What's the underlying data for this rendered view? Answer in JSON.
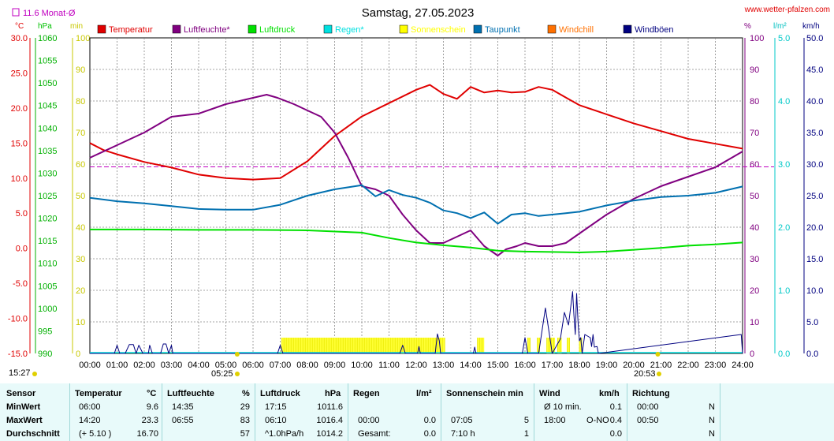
{
  "header": {
    "title": "Samstag, 27.05.2023",
    "site": "www.wetter-pfalzen.com",
    "monthly_avg": "11.6 Monat-Ø"
  },
  "axis_units": {
    "temp": "°C",
    "hpa": "hPa",
    "min": "min",
    "percent": "%",
    "rain": "l/m²",
    "kmh": "km/h"
  },
  "legend": [
    {
      "label": "Temperatur",
      "color": "#e00000"
    },
    {
      "label": "Luftfeuchte*",
      "color": "#800080"
    },
    {
      "label": "Luftdruck",
      "color": "#00e000"
    },
    {
      "label": "Regen*",
      "color": "#00e0e0"
    },
    {
      "label": "Sonnenschein",
      "color": "#ffff00"
    },
    {
      "label": "Taupunkt",
      "color": "#0070b0"
    },
    {
      "label": "Windchill",
      "color": "#ff7000"
    },
    {
      "label": "Windböen",
      "color": "#000080"
    }
  ],
  "sun": {
    "sunrise": "05:25",
    "sunset": "20:53",
    "update": "15:27"
  },
  "chart_data": {
    "type": "line",
    "x_ticks": [
      "00:00",
      "01:00",
      "02:00",
      "03:00",
      "04:00",
      "05:00",
      "06:00",
      "07:00",
      "08:00",
      "09:00",
      "10:00",
      "11:00",
      "12:00",
      "13:00",
      "14:00",
      "15:00",
      "16:00",
      "17:00",
      "18:00",
      "19:00",
      "20:00",
      "21:00",
      "22:00",
      "23:00",
      "24:00"
    ],
    "axes": {
      "temp_c": {
        "min": -15,
        "max": 30,
        "ticks": [
          "30.0",
          "25.0",
          "20.0",
          "15.0",
          "10.0",
          "5.0",
          "0.0",
          "-5.0",
          "-10.0",
          "-15.0"
        ]
      },
      "pressure_hpa": {
        "min": 990,
        "max": 1060,
        "ticks": [
          "1060",
          "1055",
          "1050",
          "1045",
          "1040",
          "1035",
          "1030",
          "1025",
          "1020",
          "1015",
          "1010",
          "1005",
          "1000",
          "995",
          "990"
        ]
      },
      "sunshine_min": {
        "min": 0,
        "max": 100,
        "ticks": [
          "100",
          "90",
          "80",
          "70",
          "60",
          "50",
          "40",
          "30",
          "20",
          "10",
          "0"
        ]
      },
      "humidity_pct": {
        "min": 0,
        "max": 100,
        "ticks": [
          "100",
          "90",
          "80",
          "70",
          "60",
          "50",
          "40",
          "30",
          "20",
          "10",
          "0"
        ]
      },
      "rain_lm2": {
        "min": 0,
        "max": 5,
        "ticks": [
          "5.0",
          "4.0",
          "3.0",
          "2.0",
          "1.0",
          "0.0"
        ]
      },
      "wind_kmh": {
        "min": 0,
        "max": 50,
        "ticks": [
          "50.0",
          "45.0",
          "40.0",
          "35.0",
          "30.0",
          "25.0",
          "20.0",
          "15.0",
          "10.0",
          "5.0",
          "0.0"
        ]
      }
    },
    "monthly_avg_temp": 11.6,
    "series": [
      {
        "name": "Temperatur",
        "color": "#e00000",
        "unit": "temp_c",
        "x": [
          0,
          0.5,
          1,
          2,
          3,
          4,
          5,
          6,
          7,
          8,
          9,
          10,
          11,
          12,
          12.5,
          13,
          13.5,
          14,
          14.5,
          15,
          15.5,
          16,
          16.5,
          17,
          17.5,
          18,
          19,
          20,
          21,
          22,
          23,
          24
        ],
        "y": [
          15.0,
          14.0,
          13.4,
          12.3,
          11.5,
          10.5,
          10.0,
          9.8,
          10.0,
          12.4,
          16.0,
          18.8,
          20.7,
          22.6,
          23.3,
          22.0,
          21.3,
          23.0,
          22.2,
          22.5,
          22.2,
          22.3,
          23.0,
          22.6,
          21.5,
          20.4,
          19.1,
          17.8,
          16.7,
          15.6,
          14.9,
          14.2
        ]
      },
      {
        "name": "Luftfeuchte*",
        "color": "#800080",
        "unit": "humidity_pct",
        "x": [
          0,
          1,
          2,
          3,
          4,
          5,
          6,
          6.5,
          6.9,
          7.5,
          8,
          8.5,
          9,
          9.5,
          10,
          10.5,
          11,
          11.5,
          12,
          12.5,
          13,
          13.5,
          14,
          14.5,
          15,
          15.3,
          15.7,
          16,
          16.5,
          17,
          17.5,
          18,
          19,
          20,
          21,
          22,
          23,
          24
        ],
        "y": [
          62,
          66,
          70,
          75,
          76,
          79,
          81,
          82,
          81,
          79,
          77,
          75,
          70,
          62,
          53,
          52,
          50,
          44,
          39,
          35,
          35,
          37,
          39,
          34,
          31,
          33,
          34,
          35,
          34,
          34,
          35,
          38,
          44,
          49,
          53,
          56,
          59,
          64
        ]
      },
      {
        "name": "Luftdruck",
        "color": "#00e000",
        "unit": "pressure_hpa",
        "x": [
          0,
          2,
          4,
          6,
          8,
          10,
          11,
          12,
          13,
          14,
          15,
          16,
          17,
          18,
          19,
          20,
          21,
          22,
          23,
          24
        ],
        "y": [
          1017.5,
          1017.5,
          1017.4,
          1017.4,
          1017.3,
          1016.8,
          1015.6,
          1014.6,
          1014.0,
          1013.5,
          1012.8,
          1012.6,
          1012.5,
          1012.4,
          1012.6,
          1013.0,
          1013.4,
          1013.9,
          1014.2,
          1014.6
        ]
      },
      {
        "name": "Taupunkt",
        "color": "#0070b0",
        "unit": "temp_c",
        "x": [
          0,
          1,
          2,
          3,
          4,
          5,
          6,
          7,
          8,
          9,
          10,
          10.5,
          11,
          11.5,
          12,
          12.5,
          13,
          13.5,
          14,
          14.5,
          15,
          15.5,
          16,
          16.5,
          17,
          17.5,
          18,
          19,
          20,
          21,
          22,
          23,
          24
        ],
        "y": [
          7.2,
          6.7,
          6.4,
          6.0,
          5.6,
          5.5,
          5.5,
          6.2,
          7.5,
          8.4,
          9.0,
          7.4,
          8.3,
          7.6,
          7.2,
          6.5,
          5.4,
          5.0,
          4.3,
          5.1,
          3.5,
          4.8,
          5.0,
          4.6,
          4.8,
          5.0,
          5.2,
          6.1,
          6.8,
          7.3,
          7.5,
          7.9,
          8.8
        ]
      },
      {
        "name": "Windböen",
        "color": "#000080",
        "unit": "wind_kmh",
        "x": [
          0,
          0.9,
          1,
          1.1,
          1.3,
          1.45,
          1.6,
          1.7,
          1.8,
          1.95,
          2,
          2.15,
          2.2,
          2.3,
          2.6,
          2.7,
          2.8,
          2.9,
          3.0,
          3.05,
          6.9,
          7,
          7.1,
          11.4,
          11.5,
          11.6,
          12.05,
          12.1,
          12.15,
          12.7,
          12.78,
          12.85,
          12.9,
          14.1,
          14.15,
          14.2,
          15.8,
          15.9,
          16.0,
          16.1,
          16.2,
          16.5,
          16.75,
          16.9,
          17.0,
          17.3,
          17.45,
          17.6,
          17.75,
          17.8,
          17.85,
          17.9,
          17.95,
          18.0,
          18.05,
          18.1,
          18.2,
          18.4,
          18.45,
          18.5,
          18.55,
          18.65,
          18.7,
          23.95,
          24
        ],
        "y": [
          0,
          0,
          1.3,
          0,
          0,
          1.4,
          1.4,
          0,
          1.3,
          0,
          0,
          0,
          1.3,
          0,
          0,
          1.5,
          1.5,
          0,
          1.3,
          0,
          0,
          1.3,
          0,
          0,
          1.3,
          0,
          0,
          1.1,
          0,
          0,
          3.1,
          2.0,
          0,
          0,
          1.0,
          0,
          0,
          0,
          2.5,
          0,
          0,
          0,
          7.2,
          3.0,
          0,
          2.3,
          6.5,
          4.5,
          9.8,
          6.0,
          3.0,
          9.5,
          5.0,
          2.0,
          2.5,
          0,
          3.0,
          2.5,
          1.1,
          3.0,
          1.0,
          1.1,
          0,
          3.0,
          0
        ]
      },
      {
        "name": "Sonnenschein",
        "color": "#ffff00",
        "unit": "sunshine_min",
        "bars": [
          [
            7.05,
            13.05
          ],
          [
            14.25,
            14.5
          ],
          [
            16.1,
            16.2
          ],
          [
            16.45,
            16.55
          ],
          [
            16.8,
            17.1
          ],
          [
            17.2,
            17.35
          ],
          [
            17.55,
            17.65
          ],
          [
            18.0,
            18.1
          ]
        ],
        "value": 5
      }
    ]
  },
  "stats": {
    "headers": {
      "sensor": "Sensor",
      "temp": "Temperatur",
      "temp_unit": "°C",
      "hum": "Luftfeuchte",
      "hum_unit": "%",
      "press": "Luftdruck",
      "press_unit": "hPa",
      "rain": "Regen",
      "rain_unit": "l/m²",
      "sun": "Sonnenschein min",
      "wind": "Wind",
      "wind_unit": "km/h",
      "dir": "Richtung"
    },
    "rows": [
      {
        "label": "MinWert",
        "temp_time": "06:00",
        "temp_val": "9.6",
        "hum_time": "14:35",
        "hum_val": "29",
        "press_time": "17:15",
        "press_val": "1011.6",
        "rain_time": "",
        "rain_val": "",
        "sun_time": "",
        "sun_val": "",
        "wind_time": "Ø 10 min.",
        "wind_dir": "",
        "wind_val": "0.1",
        "dir_time": "00:00",
        "dir_val": "N"
      },
      {
        "label": "MaxWert",
        "temp_time": "14:20",
        "temp_val": "23.3",
        "hum_time": "06:55",
        "hum_val": "83",
        "press_time": "06:10",
        "press_val": "1016.4",
        "rain_time": "00:00",
        "rain_val": "0.0",
        "sun_time": "07:05",
        "sun_val": "5",
        "wind_time": "18:00",
        "wind_dir": "O-NO",
        "wind_val": "0.4",
        "dir_time": "00:50",
        "dir_val": "N"
      },
      {
        "label": "Durchschnitt",
        "temp_time": "(+ 5.10 )",
        "temp_val": "16.70",
        "hum_time": "",
        "hum_val": "57",
        "press_time": "^1.0hPa/h",
        "press_val": "1014.2",
        "rain_time": "Gesamt:",
        "rain_val": "0.0",
        "sun_time": "7:10 h",
        "sun_val": "1",
        "wind_time": "",
        "wind_dir": "",
        "wind_val": "0.0",
        "dir_time": "",
        "dir_val": "N"
      }
    ]
  }
}
